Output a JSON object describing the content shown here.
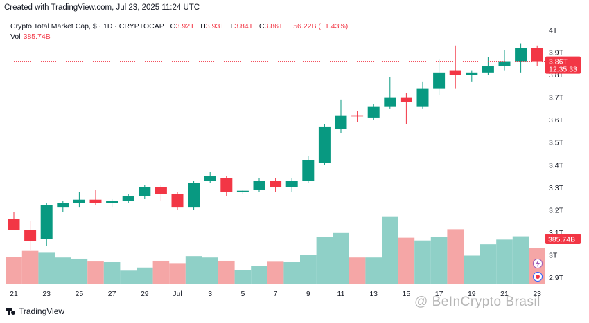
{
  "header": {
    "created_note": "Created with TradingView.com, Jul 23, 2025 11:24 UTC"
  },
  "legend": {
    "symbol": "Crypto Total Market Cap, $ · 1D · CRYPTOCAP",
    "open_label": "O",
    "open": "3.92T",
    "high_label": "H",
    "high": "3.93T",
    "low_label": "L",
    "low": "3.84T",
    "close_label": "C",
    "close": "3.86T",
    "change": "−56.22B (−1.43%)",
    "volume_label": "Vol",
    "volume": "385.74B"
  },
  "footer": {
    "logo_text": "TradingView",
    "watermark": "@ BeInCrypto Brasil"
  },
  "colors": {
    "up": "#089981",
    "down": "#f23645",
    "up_vol": "#8fd0c7",
    "down_vol": "#f5a6a6",
    "price_line": "#f23645"
  },
  "chart_data": {
    "type": "candlestick",
    "title": "Crypto Total Market Cap, $ · 1D · CRYPTOCAP",
    "y_axis": {
      "ticks": [
        "4T",
        "3.9T",
        "3.8T",
        "3.7T",
        "3.6T",
        "3.5T",
        "3.4T",
        "3.3T",
        "3.2T",
        "3.1T",
        "3T",
        "2.9T"
      ],
      "min": 2.9,
      "max": 4.0,
      "unit": "T"
    },
    "x_axis": {
      "ticks": [
        "21",
        "23",
        "25",
        "27",
        "29",
        "Jul",
        "3",
        "5",
        "7",
        "9",
        "11",
        "13",
        "15",
        "17",
        "19",
        "21",
        "23"
      ]
    },
    "last_price_label": "3.86T",
    "last_price_countdown": "12:35:33",
    "last_volume_label": "385.74B",
    "grid": false,
    "candles": [
      {
        "date": "Jun 21",
        "o": 3.16,
        "h": 3.19,
        "l": 3.11,
        "c": 3.11,
        "v": 290
      },
      {
        "date": "Jun 22",
        "o": 3.11,
        "h": 3.15,
        "l": 3.02,
        "c": 3.06,
        "v": 355
      },
      {
        "date": "Jun 23",
        "o": 3.07,
        "h": 3.23,
        "l": 3.04,
        "c": 3.22,
        "v": 335
      },
      {
        "date": "Jun 24",
        "o": 3.21,
        "h": 3.24,
        "l": 3.19,
        "c": 3.23,
        "v": 285
      },
      {
        "date": "Jun 25",
        "o": 3.23,
        "h": 3.28,
        "l": 3.21,
        "c": 3.245,
        "v": 272
      },
      {
        "date": "Jun 26",
        "o": 3.245,
        "h": 3.29,
        "l": 3.22,
        "c": 3.23,
        "v": 242
      },
      {
        "date": "Jun 27",
        "o": 3.23,
        "h": 3.25,
        "l": 3.21,
        "c": 3.24,
        "v": 235
      },
      {
        "date": "Jun 28",
        "o": 3.24,
        "h": 3.27,
        "l": 3.23,
        "c": 3.26,
        "v": 145
      },
      {
        "date": "Jun 29",
        "o": 3.26,
        "h": 3.31,
        "l": 3.25,
        "c": 3.3,
        "v": 178
      },
      {
        "date": "Jun 30",
        "o": 3.3,
        "h": 3.31,
        "l": 3.24,
        "c": 3.27,
        "v": 250
      },
      {
        "date": "Jul 1",
        "o": 3.27,
        "h": 3.28,
        "l": 3.2,
        "c": 3.21,
        "v": 225
      },
      {
        "date": "Jul 2",
        "o": 3.21,
        "h": 3.33,
        "l": 3.2,
        "c": 3.32,
        "v": 300
      },
      {
        "date": "Jul 3",
        "o": 3.33,
        "h": 3.37,
        "l": 3.32,
        "c": 3.35,
        "v": 285
      },
      {
        "date": "Jul 4",
        "o": 3.34,
        "h": 3.35,
        "l": 3.26,
        "c": 3.28,
        "v": 250
      },
      {
        "date": "Jul 5",
        "o": 3.28,
        "h": 3.29,
        "l": 3.27,
        "c": 3.285,
        "v": 150
      },
      {
        "date": "Jul 6",
        "o": 3.29,
        "h": 3.34,
        "l": 3.28,
        "c": 3.33,
        "v": 195
      },
      {
        "date": "Jul 7",
        "o": 3.33,
        "h": 3.34,
        "l": 3.28,
        "c": 3.3,
        "v": 240
      },
      {
        "date": "Jul 8",
        "o": 3.3,
        "h": 3.34,
        "l": 3.28,
        "c": 3.33,
        "v": 235
      },
      {
        "date": "Jul 9",
        "o": 3.33,
        "h": 3.44,
        "l": 3.32,
        "c": 3.42,
        "v": 310
      },
      {
        "date": "Jul 10",
        "o": 3.41,
        "h": 3.58,
        "l": 3.4,
        "c": 3.57,
        "v": 500
      },
      {
        "date": "Jul 11",
        "o": 3.56,
        "h": 3.69,
        "l": 3.54,
        "c": 3.62,
        "v": 545
      },
      {
        "date": "Jul 12",
        "o": 3.62,
        "h": 3.64,
        "l": 3.59,
        "c": 3.615,
        "v": 285
      },
      {
        "date": "Jul 13",
        "o": 3.61,
        "h": 3.67,
        "l": 3.6,
        "c": 3.66,
        "v": 285
      },
      {
        "date": "Jul 14",
        "o": 3.66,
        "h": 3.79,
        "l": 3.65,
        "c": 3.7,
        "v": 715
      },
      {
        "date": "Jul 15",
        "o": 3.7,
        "h": 3.72,
        "l": 3.58,
        "c": 3.68,
        "v": 495
      },
      {
        "date": "Jul 16",
        "o": 3.66,
        "h": 3.77,
        "l": 3.65,
        "c": 3.74,
        "v": 465
      },
      {
        "date": "Jul 17",
        "o": 3.74,
        "h": 3.87,
        "l": 3.71,
        "c": 3.81,
        "v": 505
      },
      {
        "date": "Jul 18",
        "o": 3.82,
        "h": 3.93,
        "l": 3.74,
        "c": 3.8,
        "v": 585
      },
      {
        "date": "Jul 19",
        "o": 3.8,
        "h": 3.82,
        "l": 3.77,
        "c": 3.81,
        "v": 305
      },
      {
        "date": "Jul 20",
        "o": 3.81,
        "h": 3.88,
        "l": 3.8,
        "c": 3.84,
        "v": 425
      },
      {
        "date": "Jul 21",
        "o": 3.84,
        "h": 3.91,
        "l": 3.82,
        "c": 3.86,
        "v": 475
      },
      {
        "date": "Jul 22",
        "o": 3.86,
        "h": 3.94,
        "l": 3.81,
        "c": 3.92,
        "v": 510
      },
      {
        "date": "Jul 23",
        "o": 3.92,
        "h": 3.93,
        "l": 3.84,
        "c": 3.86,
        "v": 385.74
      }
    ]
  }
}
